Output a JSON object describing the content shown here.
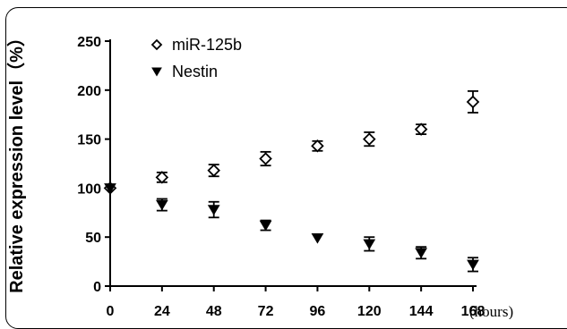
{
  "chart_data": {
    "type": "scatter",
    "ylabel": "Relative expression level（%）",
    "x_unit": "(hours)",
    "x": [
      0,
      24,
      48,
      72,
      96,
      120,
      144,
      168
    ],
    "xticks": [
      "0",
      "24",
      "48",
      "72",
      "96",
      "120",
      "144",
      "168"
    ],
    "yticks": [
      "0",
      "50",
      "100",
      "150",
      "200",
      "250"
    ],
    "ylim": [
      0,
      250
    ],
    "xlim": [
      0,
      168
    ],
    "legend_position": "top-left",
    "series": [
      {
        "name": "miR-125b",
        "marker": "diamond-open",
        "values": [
          100,
          111,
          118,
          130,
          143,
          150,
          160,
          188
        ],
        "errors": [
          0,
          5,
          6,
          7,
          5,
          7,
          5,
          11
        ]
      },
      {
        "name": "Nestin",
        "marker": "triangle-down-filled",
        "values": [
          100,
          83,
          78,
          62,
          49,
          43,
          34,
          22
        ],
        "errors": [
          0,
          6,
          8,
          5,
          0,
          7,
          6,
          7
        ]
      }
    ],
    "colors": {
      "axis": "#000000",
      "marker": "#000000"
    }
  }
}
